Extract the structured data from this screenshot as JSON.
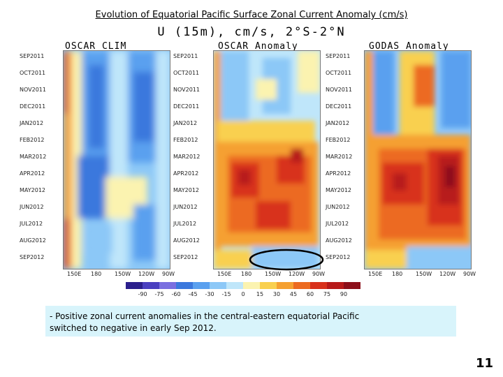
{
  "slide_title": "Evolution of Equatorial Pacific Surface Zonal Current Anomaly (cm/s)",
  "plot_title": "U (15m), cm/s, 2°S-2°N",
  "panels": [
    {
      "title": "OSCAR CLIM"
    },
    {
      "title": "OSCAR Anomaly"
    },
    {
      "title": "GODAS Anomaly"
    }
  ],
  "months": [
    "SEP2011",
    "OCT2011",
    "NOV2011",
    "DEC2011",
    "JAN2012",
    "FEB2012",
    "MAR2012",
    "APR2012",
    "MAY2012",
    "JUN2012",
    "JUL2012",
    "AUG2012",
    "SEP2012"
  ],
  "x_labels": {
    "panel1": [
      "150E",
      "180",
      "150W",
      "120W",
      "90W"
    ],
    "panel2": [
      "150E",
      "180",
      "150W",
      "120W",
      "90W"
    ],
    "panel3": [
      "150E",
      "180",
      "150W",
      "120W",
      "90W"
    ]
  },
  "colorbar": {
    "labels": [
      "-90",
      "-75",
      "-60",
      "-45",
      "-30",
      "-15",
      "0",
      "15",
      "30",
      "45",
      "60",
      "75",
      "90"
    ],
    "colors": [
      "#2b1f8c",
      "#4a3fc0",
      "#7a6fe0",
      "#3b78dd",
      "#5aa0ef",
      "#8cc8f7",
      "#bfe6fa",
      "#fbf3b0",
      "#f9d04f",
      "#f5a030",
      "#ec6a20",
      "#d8311c",
      "#b71a1a",
      "#8c0f1a"
    ]
  },
  "note": {
    "line1": "- Positive zonal current anomalies in the central-eastern equatorial Pacific",
    "line2": "switched to negative in early Sep 2012."
  },
  "page_number": "11"
}
